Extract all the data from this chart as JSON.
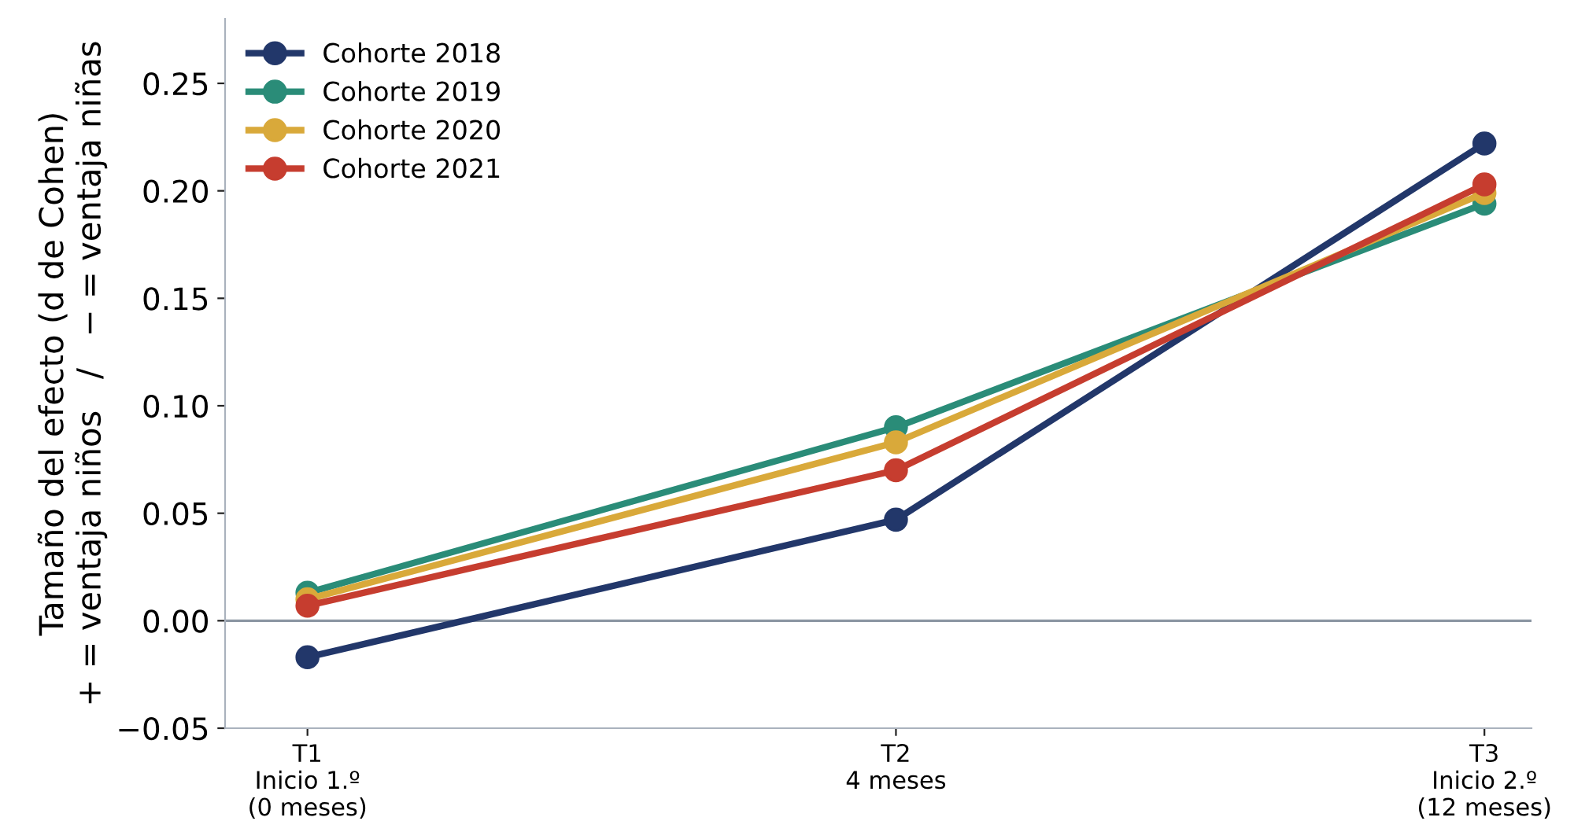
{
  "chart_data": {
    "type": "line",
    "ylabel": "Tamaño del efecto (d de Cohen)\n+ = ventaja niños   /   − = ventaja niñas",
    "categories": [
      "T1\nInicio 1.º\n(0 meses)",
      "T2\n4 meses",
      "T3\nInicio 2.º\n(12 meses)"
    ],
    "ylim": [
      -0.05,
      0.28
    ],
    "yticks": [
      {
        "value": -0.05,
        "label": "−0.05"
      },
      {
        "value": 0,
        "label": "0.00"
      },
      {
        "value": 0.05,
        "label": "0.05"
      },
      {
        "value": 0.1,
        "label": "0.10"
      },
      {
        "value": 0.15,
        "label": "0.15"
      },
      {
        "value": 0.2,
        "label": "0.20"
      },
      {
        "value": 0.25,
        "label": "0.25"
      }
    ],
    "series": [
      {
        "name": "Cohorte 2018",
        "color": "#22376a",
        "values": [
          -0.017,
          0.047,
          0.222
        ]
      },
      {
        "name": "Cohorte 2019",
        "color": "#2a8c78",
        "values": [
          0.013,
          0.09,
          0.194
        ]
      },
      {
        "name": "Cohorte 2020",
        "color": "#d9a93a",
        "values": [
          0.01,
          0.083,
          0.199
        ]
      },
      {
        "name": "Cohorte 2021",
        "color": "#c63d2f",
        "values": [
          0.007,
          0.07,
          0.203
        ]
      }
    ],
    "ref_lines": [
      {
        "axis": "y",
        "value": 0,
        "color": "#8c96a3",
        "line_style": "solid"
      }
    ],
    "marker": "circle",
    "line_style": "solid",
    "grid": false,
    "legend": "top left"
  }
}
